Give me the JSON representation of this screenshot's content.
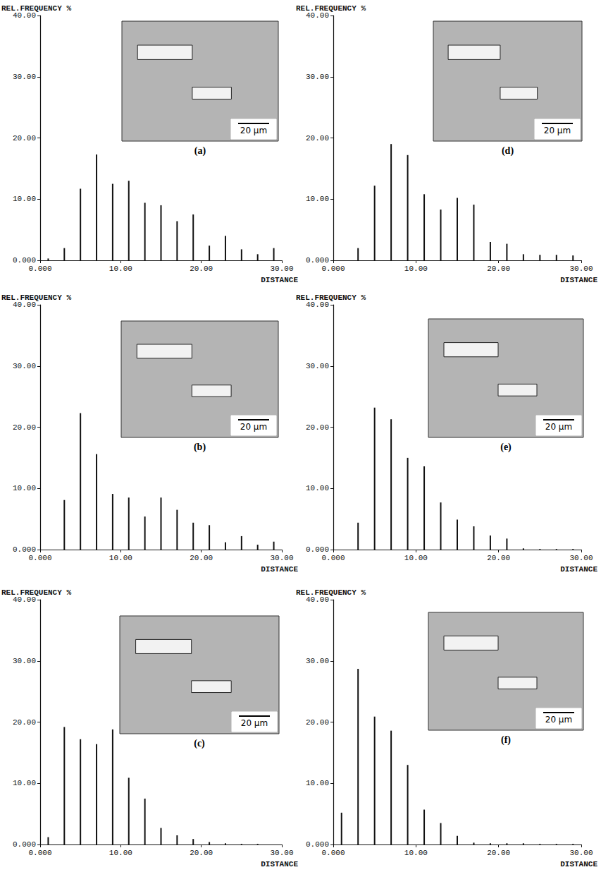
{
  "chart_data": [
    {
      "type": "bar",
      "panel_label": "(a)",
      "inset_scale_label": "20 μm",
      "ylabel": "REL.FREQUENCY %",
      "xlabel": "DISTANCE",
      "grid": false,
      "x": [
        1,
        3,
        5,
        7,
        9,
        11,
        13,
        15,
        17,
        19,
        21,
        23,
        25,
        27,
        29
      ],
      "values": [
        0.3,
        2.0,
        11.7,
        17.3,
        12.5,
        13.0,
        9.4,
        9.0,
        6.4,
        7.5,
        2.4,
        4.0,
        1.8,
        1.0,
        2.0
      ],
      "color": "#111111",
      "xlim": [
        0,
        30
      ],
      "xticks": [
        {
          "value": 0,
          "label": "0.000"
        },
        {
          "value": 10,
          "label": "10.00"
        },
        {
          "value": 20,
          "label": "20.00"
        },
        {
          "value": 30,
          "label": "30.00"
        }
      ],
      "ylim": [
        0,
        40
      ],
      "yticks": [
        {
          "value": 0,
          "label": "0.000"
        },
        {
          "value": 10,
          "label": "10.00"
        },
        {
          "value": 20,
          "label": "20.00"
        },
        {
          "value": 30,
          "label": "30.00"
        },
        {
          "value": 40,
          "label": "40.00"
        }
      ]
    },
    {
      "type": "bar",
      "panel_label": "(b)",
      "inset_scale_label": "20 μm",
      "ylabel": "REL.FREQUENCY %",
      "xlabel": "DISTANCE",
      "grid": false,
      "x": [
        1,
        3,
        5,
        7,
        9,
        11,
        13,
        15,
        17,
        19,
        21,
        23,
        25,
        27,
        29
      ],
      "values": [
        0,
        8.1,
        22.3,
        15.6,
        9.1,
        8.5,
        5.4,
        8.5,
        6.5,
        4.4,
        4.0,
        1.2,
        2.2,
        0.8,
        1.3
      ],
      "color": "#111111",
      "xlim": [
        0,
        30
      ],
      "xticks": [
        {
          "value": 0,
          "label": "0.000"
        },
        {
          "value": 10,
          "label": "10.00"
        },
        {
          "value": 20,
          "label": "20.00"
        },
        {
          "value": 30,
          "label": "30.00"
        }
      ],
      "ylim": [
        0,
        40
      ],
      "yticks": [
        {
          "value": 0,
          "label": "0.000"
        },
        {
          "value": 10,
          "label": "10.00"
        },
        {
          "value": 20,
          "label": "20.00"
        },
        {
          "value": 30,
          "label": "30.00"
        },
        {
          "value": 40,
          "label": "40.00"
        }
      ]
    },
    {
      "type": "bar",
      "panel_label": "(c)",
      "inset_scale_label": "20 μm",
      "ylabel": "REL.FREQUENCY %",
      "xlabel": "DISTANCE",
      "grid": false,
      "x": [
        1,
        3,
        5,
        7,
        9,
        11,
        13,
        15,
        17,
        19,
        21,
        23,
        25,
        27,
        29
      ],
      "values": [
        1.2,
        19.2,
        17.2,
        16.4,
        18.8,
        10.9,
        7.5,
        2.7,
        1.5,
        0.9,
        0.4,
        0.2,
        0.1,
        0.1,
        0
      ],
      "color": "#111111",
      "xlim": [
        0,
        30
      ],
      "xticks": [
        {
          "value": 0,
          "label": "0.000"
        },
        {
          "value": 10,
          "label": "10.00"
        },
        {
          "value": 20,
          "label": "20.00"
        },
        {
          "value": 30,
          "label": "30.00"
        }
      ],
      "ylim": [
        0,
        40
      ],
      "yticks": [
        {
          "value": 0,
          "label": "0.000"
        },
        {
          "value": 10,
          "label": "10.00"
        },
        {
          "value": 20,
          "label": "20.00"
        },
        {
          "value": 30,
          "label": "30.00"
        },
        {
          "value": 40,
          "label": "40.00"
        }
      ]
    },
    {
      "type": "bar",
      "panel_label": "(d)",
      "inset_scale_label": "20 μm",
      "ylabel": "REL.FREQUENCY %",
      "xlabel": "DISTANCE",
      "grid": false,
      "x": [
        1,
        3,
        5,
        7,
        9,
        11,
        13,
        15,
        17,
        19,
        21,
        23,
        25,
        27,
        29
      ],
      "values": [
        0,
        2.0,
        12.2,
        19.0,
        17.2,
        10.8,
        8.3,
        10.2,
        9.1,
        3.0,
        2.7,
        1.0,
        0.9,
        0.9,
        0.8
      ],
      "color": "#111111",
      "xlim": [
        0,
        30
      ],
      "xticks": [
        {
          "value": 0,
          "label": "0.000"
        },
        {
          "value": 10,
          "label": "10.00"
        },
        {
          "value": 20,
          "label": "20.00"
        },
        {
          "value": 30,
          "label": "30.00"
        }
      ],
      "ylim": [
        0,
        40
      ],
      "yticks": [
        {
          "value": 0,
          "label": "0.000"
        },
        {
          "value": 10,
          "label": "10.00"
        },
        {
          "value": 20,
          "label": "20.00"
        },
        {
          "value": 30,
          "label": "30.00"
        },
        {
          "value": 40,
          "label": "40.00"
        }
      ]
    },
    {
      "type": "bar",
      "panel_label": "(e)",
      "inset_scale_label": "20 μm",
      "ylabel": "REL.FREQUENCY %",
      "xlabel": "DISTANCE",
      "grid": false,
      "x": [
        1,
        3,
        5,
        7,
        9,
        11,
        13,
        15,
        17,
        19,
        21,
        23,
        25,
        27,
        29
      ],
      "values": [
        0,
        4.4,
        23.2,
        21.3,
        15.0,
        13.6,
        7.7,
        4.9,
        3.8,
        2.3,
        1.8,
        0.2,
        0.1,
        0.1,
        0.1
      ],
      "color": "#111111",
      "xlim": [
        0,
        30
      ],
      "xticks": [
        {
          "value": 0,
          "label": "0.000"
        },
        {
          "value": 10,
          "label": "10.00"
        },
        {
          "value": 20,
          "label": "20.00"
        },
        {
          "value": 30,
          "label": "30.00"
        }
      ],
      "ylim": [
        0,
        40
      ],
      "yticks": [
        {
          "value": 0,
          "label": "0.000"
        },
        {
          "value": 10,
          "label": "10.00"
        },
        {
          "value": 20,
          "label": "20.00"
        },
        {
          "value": 30,
          "label": "30.00"
        },
        {
          "value": 40,
          "label": "40.00"
        }
      ]
    },
    {
      "type": "bar",
      "panel_label": "(f)",
      "inset_scale_label": "20 μm",
      "ylabel": "REL.FREQUENCY %",
      "xlabel": "DISTANCE",
      "grid": false,
      "x": [
        1,
        3,
        5,
        7,
        9,
        11,
        13,
        15,
        17,
        19,
        21,
        23,
        25,
        27,
        29
      ],
      "values": [
        5.2,
        28.7,
        20.9,
        18.6,
        13.0,
        5.7,
        3.5,
        1.4,
        0.3,
        0.2,
        0.2,
        0.2,
        0.1,
        0.1,
        0.1
      ],
      "color": "#111111",
      "xlim": [
        0,
        30
      ],
      "xticks": [
        {
          "value": 0,
          "label": "0.000"
        },
        {
          "value": 10,
          "label": "10.00"
        },
        {
          "value": 20,
          "label": "20.00"
        },
        {
          "value": 30,
          "label": "30.00"
        }
      ],
      "ylim": [
        0,
        40
      ],
      "yticks": [
        {
          "value": 0,
          "label": "0.000"
        },
        {
          "value": 10,
          "label": "10.00"
        },
        {
          "value": 20,
          "label": "20.00"
        },
        {
          "value": 30,
          "label": "30.00"
        },
        {
          "value": 40,
          "label": "40.00"
        }
      ]
    }
  ]
}
